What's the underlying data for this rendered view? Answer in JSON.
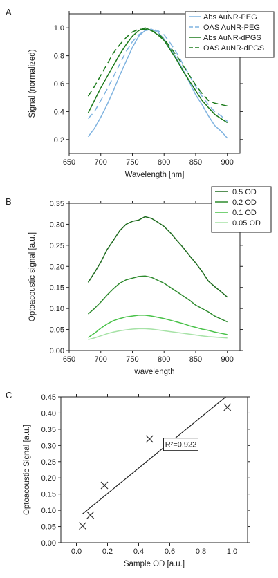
{
  "chart_data": [
    {
      "panel_label": "A",
      "type": "line",
      "xlabel": "Wavelength [nm]",
      "ylabel": "Signal (normalized)",
      "xlim": [
        650,
        920
      ],
      "ylim": [
        0.1,
        1.1
      ],
      "xticks": [
        "650",
        "700",
        "750",
        "800",
        "850",
        "900"
      ],
      "yticks": [
        "0.2",
        "0.4",
        "0.6",
        "0.8",
        "1.0"
      ],
      "legend_position": "top-right",
      "series": [
        {
          "name": "Abs AuNR-PEG",
          "color": "#7fb3e0",
          "dash": "solid",
          "x": [
            680,
            690,
            700,
            710,
            720,
            730,
            740,
            750,
            760,
            770,
            780,
            790,
            800,
            810,
            820,
            830,
            840,
            850,
            860,
            870,
            880,
            890,
            900
          ],
          "y": [
            0.22,
            0.28,
            0.36,
            0.45,
            0.55,
            0.66,
            0.76,
            0.86,
            0.94,
            0.98,
            0.99,
            0.97,
            0.92,
            0.85,
            0.78,
            0.7,
            0.61,
            0.52,
            0.45,
            0.37,
            0.3,
            0.26,
            0.21
          ]
        },
        {
          "name": "OAS AuNR-PEG",
          "color": "#7fb3e0",
          "dash": "dashed",
          "x": [
            680,
            690,
            700,
            710,
            720,
            730,
            740,
            750,
            760,
            770,
            780,
            790,
            800,
            810,
            820,
            830,
            840,
            850,
            860,
            870,
            880,
            890,
            900
          ],
          "y": [
            0.35,
            0.4,
            0.48,
            0.56,
            0.65,
            0.74,
            0.83,
            0.9,
            0.95,
            0.98,
            0.99,
            0.98,
            0.95,
            0.89,
            0.82,
            0.74,
            0.66,
            0.58,
            0.51,
            0.45,
            0.4,
            0.37,
            0.33
          ]
        },
        {
          "name": "Abs AuNR-dPGS",
          "color": "#1a7a1a",
          "dash": "solid",
          "x": [
            680,
            690,
            700,
            710,
            720,
            730,
            740,
            750,
            760,
            770,
            780,
            790,
            800,
            810,
            820,
            830,
            840,
            850,
            860,
            870,
            880,
            890,
            900
          ],
          "y": [
            0.39,
            0.48,
            0.57,
            0.65,
            0.73,
            0.81,
            0.88,
            0.94,
            0.98,
            1.0,
            0.98,
            0.95,
            0.91,
            0.84,
            0.77,
            0.69,
            0.62,
            0.55,
            0.48,
            0.43,
            0.38,
            0.35,
            0.32
          ]
        },
        {
          "name": "OAS AuNR-dPGS",
          "color": "#1a7a1a",
          "dash": "dashed",
          "x": [
            680,
            690,
            700,
            710,
            720,
            730,
            740,
            750,
            760,
            770,
            780,
            790,
            800,
            810,
            820,
            830,
            840,
            850,
            860,
            870,
            880,
            890,
            900
          ],
          "y": [
            0.51,
            0.58,
            0.66,
            0.74,
            0.82,
            0.88,
            0.93,
            0.97,
            0.99,
            0.99,
            0.98,
            0.96,
            0.92,
            0.86,
            0.8,
            0.73,
            0.66,
            0.59,
            0.53,
            0.48,
            0.46,
            0.45,
            0.44
          ]
        }
      ]
    },
    {
      "panel_label": "B",
      "type": "line",
      "xlabel": "wavelength",
      "ylabel": "Optoacoustic signal [a.u.]",
      "xlim": [
        650,
        920
      ],
      "ylim": [
        0.0,
        0.35
      ],
      "xticks": [
        "650",
        "700",
        "750",
        "800",
        "850",
        "900"
      ],
      "yticks": [
        "0.00",
        "0.05",
        "0.10",
        "0.15",
        "0.20",
        "0.25",
        "0.30",
        "0.35"
      ],
      "legend_position": "top-right",
      "series": [
        {
          "name": "0.5 OD",
          "color": "#1e6b1e",
          "x": [
            680,
            690,
            700,
            710,
            720,
            730,
            740,
            750,
            760,
            770,
            780,
            790,
            800,
            810,
            820,
            830,
            840,
            850,
            860,
            870,
            880,
            890,
            900
          ],
          "y": [
            0.162,
            0.185,
            0.21,
            0.24,
            0.262,
            0.285,
            0.3,
            0.307,
            0.31,
            0.318,
            0.314,
            0.305,
            0.295,
            0.28,
            0.262,
            0.245,
            0.226,
            0.208,
            0.188,
            0.165,
            0.152,
            0.14,
            0.127
          ]
        },
        {
          "name": "0.2 OD",
          "color": "#2e8b2e",
          "x": [
            680,
            690,
            700,
            710,
            720,
            730,
            740,
            750,
            760,
            770,
            780,
            790,
            800,
            810,
            820,
            830,
            840,
            850,
            860,
            870,
            880,
            890,
            900
          ],
          "y": [
            0.087,
            0.1,
            0.115,
            0.132,
            0.147,
            0.16,
            0.168,
            0.172,
            0.176,
            0.177,
            0.174,
            0.167,
            0.16,
            0.15,
            0.14,
            0.13,
            0.12,
            0.108,
            0.1,
            0.092,
            0.082,
            0.075,
            0.068
          ]
        },
        {
          "name": "0.1 OD",
          "color": "#49c249",
          "x": [
            680,
            690,
            700,
            710,
            720,
            730,
            740,
            750,
            760,
            770,
            780,
            790,
            800,
            810,
            820,
            830,
            840,
            850,
            860,
            870,
            880,
            890,
            900
          ],
          "y": [
            0.031,
            0.041,
            0.053,
            0.063,
            0.071,
            0.076,
            0.08,
            0.082,
            0.084,
            0.084,
            0.082,
            0.079,
            0.076,
            0.072,
            0.068,
            0.064,
            0.059,
            0.055,
            0.051,
            0.048,
            0.044,
            0.041,
            0.038
          ]
        },
        {
          "name": "0.05 OD",
          "color": "#a6e2a6",
          "x": [
            680,
            690,
            700,
            710,
            720,
            730,
            740,
            750,
            760,
            770,
            780,
            790,
            800,
            810,
            820,
            830,
            840,
            850,
            860,
            870,
            880,
            890,
            900
          ],
          "y": [
            0.026,
            0.03,
            0.035,
            0.04,
            0.044,
            0.047,
            0.049,
            0.051,
            0.052,
            0.052,
            0.051,
            0.049,
            0.047,
            0.045,
            0.043,
            0.041,
            0.039,
            0.037,
            0.035,
            0.033,
            0.032,
            0.031,
            0.03
          ]
        }
      ]
    },
    {
      "panel_label": "C",
      "type": "scatter",
      "xlabel": "Sample OD [a.u.]",
      "ylabel": "Optoacoustic Signal [a.u.]",
      "xlim": [
        -0.1,
        1.1
      ],
      "ylim": [
        0.0,
        0.45
      ],
      "xticks": [
        "0.0",
        "0.2",
        "0.4",
        "0.6",
        "0.8",
        "1.0"
      ],
      "yticks": [
        "0.00",
        "0.05",
        "0.10",
        "0.15",
        "0.20",
        "0.25",
        "0.30",
        "0.35",
        "0.40",
        "0.45"
      ],
      "points": {
        "x": [
          0.04,
          0.09,
          0.18,
          0.47,
          0.97
        ],
        "y": [
          0.052,
          0.085,
          0.177,
          0.32,
          0.418
        ]
      },
      "fit_line": {
        "x": [
          0.04,
          0.96
        ],
        "y": [
          0.089,
          0.45
        ]
      },
      "annotation": "R²=0.922"
    }
  ]
}
